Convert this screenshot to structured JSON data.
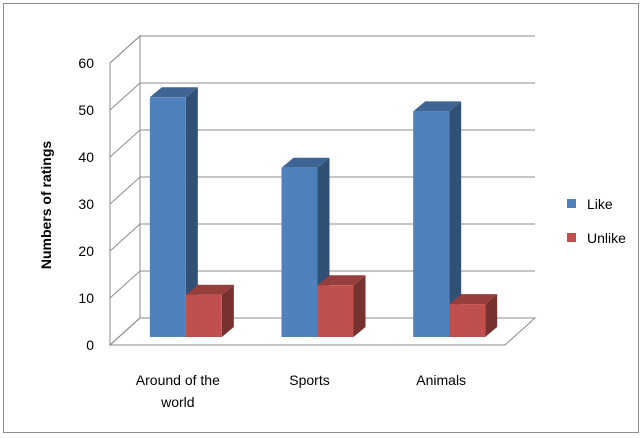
{
  "chart_data": {
    "type": "bar",
    "style": "3d-clustered-column",
    "categories": [
      "Around of the world",
      "Sports",
      "Animals"
    ],
    "series": [
      {
        "name": "Like",
        "values": [
          51,
          36,
          48
        ],
        "color": "#4F81BD"
      },
      {
        "name": "Unlike",
        "values": [
          9,
          11,
          7
        ],
        "color": "#C0504D"
      }
    ],
    "ylabel": "Numbers of ratings",
    "xlabel": "",
    "ylim": [
      0,
      60
    ],
    "yticks": [
      0,
      10,
      20,
      30,
      40,
      50,
      60
    ],
    "grid": true,
    "legend_position": "right"
  }
}
